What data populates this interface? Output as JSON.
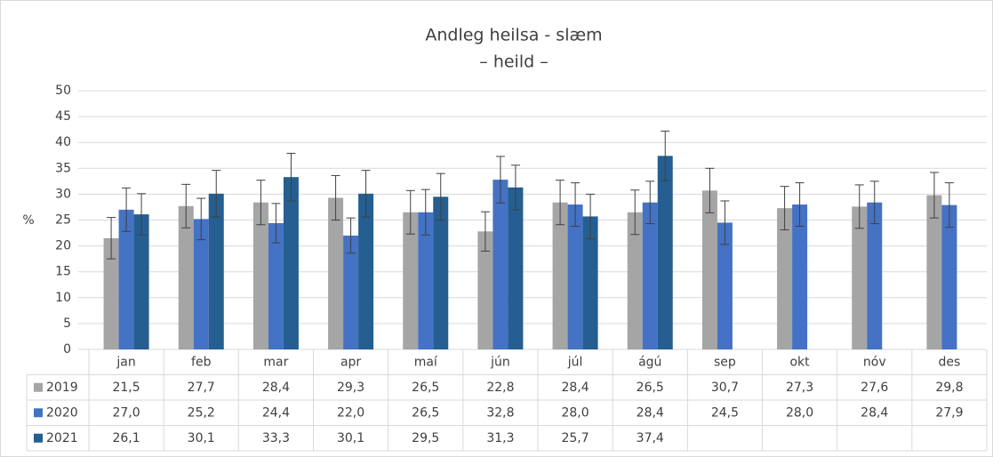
{
  "chart_data": {
    "type": "bar",
    "title": "Andleg heilsa - slæm",
    "subtitle": "– heild –",
    "y_label": "%",
    "categories": [
      "jan",
      "feb",
      "mar",
      "apr",
      "maí",
      "jún",
      "júl",
      "ágú",
      "sep",
      "okt",
      "nóv",
      "des"
    ],
    "ylim": [
      0,
      50
    ],
    "yticks": [
      0,
      5,
      10,
      15,
      20,
      25,
      30,
      35,
      40,
      45,
      50
    ],
    "grid": true,
    "series": [
      {
        "name": "2019",
        "color": "#a5a5a5",
        "values": [
          21.5,
          27.7,
          28.4,
          29.3,
          26.5,
          22.8,
          28.4,
          26.5,
          30.7,
          27.3,
          27.6,
          29.8
        ],
        "value_labels": [
          "21,5",
          "27,7",
          "28,4",
          "29,3",
          "26,5",
          "22,8",
          "28,4",
          "26,5",
          "30,7",
          "27,3",
          "27,6",
          "29,8"
        ],
        "errors": [
          4,
          4.2,
          4.3,
          4.3,
          4.2,
          3.8,
          4.3,
          4.3,
          4.3,
          4.2,
          4.2,
          4.4
        ]
      },
      {
        "name": "2020",
        "color": "#4472c4",
        "values": [
          27.0,
          25.2,
          24.4,
          22.0,
          26.5,
          32.8,
          28.0,
          28.4,
          24.5,
          28.0,
          28.4,
          27.9
        ],
        "value_labels": [
          "27,0",
          "25,2",
          "24,4",
          "22,0",
          "26,5",
          "32,8",
          "28,0",
          "28,4",
          "24,5",
          "28,0",
          "28,4",
          "27,9"
        ],
        "errors": [
          4.2,
          4,
          3.8,
          3.4,
          4.4,
          4.5,
          4.2,
          4.1,
          4.2,
          4.2,
          4.1,
          4.3
        ]
      },
      {
        "name": "2021",
        "color": "#255e91",
        "values": [
          26.1,
          30.1,
          33.3,
          30.1,
          29.5,
          31.3,
          25.7,
          37.4,
          null,
          null,
          null,
          null
        ],
        "value_labels": [
          "26,1",
          "30,1",
          "33,3",
          "30,1",
          "29,5",
          "31,3",
          "25,7",
          "37,4",
          null,
          null,
          null,
          null
        ],
        "errors": [
          4,
          4.5,
          4.6,
          4.5,
          4.5,
          4.3,
          4.3,
          4.8,
          null,
          null,
          null,
          null
        ]
      }
    ]
  }
}
